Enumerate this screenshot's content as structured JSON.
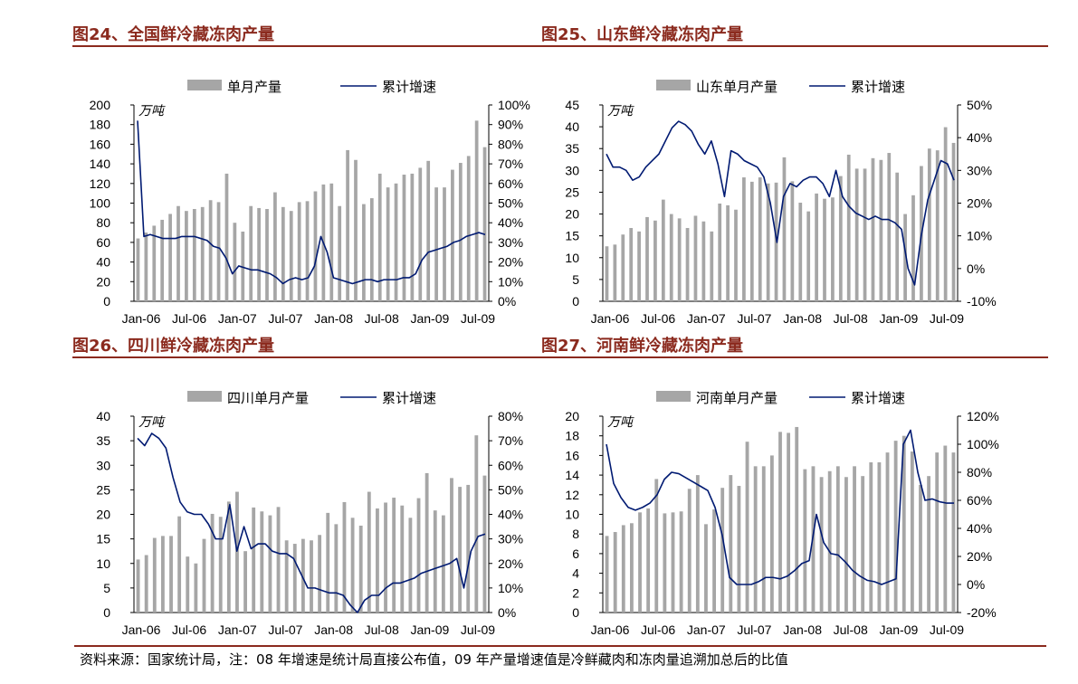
{
  "footer": {
    "source_note": "资料来源：国家统计局，注：08 年增速是统计局直接公布值，09 年产量增速值是冷鲜藏肉和冻肉量追溯加总后的比值"
  },
  "colors": {
    "bar": "#a6a6a6",
    "line": "#001a72",
    "title": "#8b2a1e"
  },
  "chart_data": [
    {
      "type": "bar",
      "title": "图24、全国鲜冷藏冻肉产量",
      "unit_label": "万吨",
      "x_tick_labels": [
        "Jan-06",
        "Jul-06",
        "Jan-07",
        "Jul-07",
        "Jan-08",
        "Jul-08",
        "Jan-09",
        "Jul-09"
      ],
      "left_axis": {
        "min": 0,
        "max": 200,
        "step": 20,
        "format": "number"
      },
      "right_axis": {
        "min": 0,
        "max": 100,
        "step": 10,
        "format": "percent"
      },
      "series": [
        {
          "name": "单月产量",
          "type": "bar",
          "axis": "left",
          "values": [
            64,
            70,
            77,
            83,
            89,
            97,
            92,
            94,
            96,
            103,
            101,
            130,
            80,
            71,
            97,
            95,
            94,
            111,
            96,
            92,
            101,
            102,
            112,
            119,
            120,
            97,
            154,
            144,
            99,
            105,
            130,
            116,
            120,
            129,
            130,
            136,
            143,
            116,
            116,
            134,
            141,
            148,
            184,
            157
          ]
        },
        {
          "name": "累计增速",
          "type": "line",
          "axis": "right",
          "values": [
            92,
            33,
            34,
            33,
            32,
            32,
            32,
            33,
            33,
            33,
            32,
            31,
            28,
            27,
            22,
            14,
            18,
            17,
            16,
            16,
            15,
            14,
            12,
            9,
            11,
            12,
            11,
            12,
            18,
            33,
            25,
            12,
            11,
            10,
            9,
            10,
            11,
            11,
            10,
            11,
            11,
            11,
            12,
            12,
            14,
            21,
            25,
            26,
            27,
            28,
            30,
            31,
            33,
            34,
            35,
            34
          ]
        }
      ]
    },
    {
      "type": "bar",
      "title": "图25、山东鲜冷藏冻肉产量",
      "unit_label": "万吨",
      "x_tick_labels": [
        "Jan-06",
        "Jul-06",
        "Jan-07",
        "Jul-07",
        "Jan-08",
        "Jul-08",
        "Jan-09",
        "Jul-09"
      ],
      "left_axis": {
        "min": 0,
        "max": 45,
        "step": 5,
        "format": "number"
      },
      "right_axis": {
        "min": -10,
        "max": 50,
        "step": 10,
        "format": "percent"
      },
      "series": [
        {
          "name": "山东单月产量",
          "type": "bar",
          "axis": "left",
          "values": [
            12.6,
            13.0,
            15.3,
            16.8,
            16.0,
            19.3,
            18.5,
            23.3,
            20.0,
            19.0,
            16.8,
            19.6,
            18.3,
            16.0,
            22.4,
            22.0,
            21.0,
            28.4,
            27.4,
            28.4,
            27.0,
            27.2,
            33.0,
            27.5,
            22.6,
            20.6,
            24.7,
            23.5,
            23.8,
            28.7,
            33.6,
            30.4,
            30.4,
            32.8,
            32.4,
            34.0,
            29.5,
            20.0,
            24.3,
            31.0,
            35.0,
            34.6,
            39.9,
            36.3
          ]
        },
        {
          "name": "累计增速",
          "type": "line",
          "axis": "right",
          "values": [
            35,
            31,
            31,
            30,
            27,
            28,
            31,
            33,
            35,
            39,
            43,
            45,
            44,
            42,
            38,
            35,
            39,
            32,
            22,
            36,
            35,
            33,
            32,
            31,
            28,
            20,
            8,
            22,
            26,
            25,
            27,
            28,
            28,
            26,
            22,
            30,
            22,
            19,
            17,
            16,
            15,
            16,
            15,
            15,
            14,
            12,
            0,
            -5,
            10,
            21,
            27,
            33,
            32,
            27
          ]
        }
      ]
    },
    {
      "type": "bar",
      "title": "图26、四川鲜冷藏冻肉产量",
      "unit_label": "万吨",
      "x_tick_labels": [
        "Jan-06",
        "Jul-06",
        "Jan-07",
        "Jul-07",
        "Jan-08",
        "Jul-08",
        "Jan-09",
        "Jul-09"
      ],
      "left_axis": {
        "min": 0,
        "max": 40,
        "step": 5,
        "format": "number"
      },
      "right_axis": {
        "min": 0,
        "max": 80,
        "step": 10,
        "format": "percent"
      },
      "series": [
        {
          "name": "四川单月产量",
          "type": "bar",
          "axis": "left",
          "values": [
            10.8,
            11.7,
            15.2,
            15.6,
            15.6,
            19.6,
            11.4,
            10.0,
            15.0,
            20.1,
            19.5,
            22.6,
            24.6,
            12.5,
            21.4,
            20.6,
            19.8,
            21.5,
            14.7,
            14.0,
            15.0,
            14.7,
            15.8,
            20.3,
            18.0,
            22.5,
            19.3,
            17.7,
            24.6,
            21.2,
            22.4,
            23.4,
            21.8,
            19.3,
            23.3,
            28.4,
            20.8,
            19.8,
            27.4,
            25.6,
            26.0,
            36.1,
            27.9
          ]
        },
        {
          "name": "累计增速",
          "type": "line",
          "axis": "right",
          "values": [
            71,
            68,
            73,
            71,
            67,
            55,
            45,
            41,
            40,
            40,
            36,
            30,
            30,
            44,
            25,
            35,
            26,
            28,
            28,
            25,
            24,
            24,
            22,
            16,
            10,
            10,
            9,
            8,
            8,
            7,
            3,
            0,
            5,
            7,
            7,
            10,
            12,
            12,
            13,
            14,
            16,
            17,
            18,
            19,
            20,
            22,
            10,
            25,
            31,
            32
          ]
        }
      ]
    },
    {
      "type": "bar",
      "title": "图27、河南鲜冷藏冻肉产量",
      "unit_label": "万吨",
      "x_tick_labels": [
        "Jan-06",
        "Jul-06",
        "Jan-07",
        "Jul-07",
        "Jan-08",
        "Jul-08",
        "Jan-09",
        "Jul-09"
      ],
      "left_axis": {
        "min": 0,
        "max": 20,
        "step": 2,
        "format": "number"
      },
      "right_axis": {
        "min": -20,
        "max": 120,
        "step": 20,
        "format": "percent"
      },
      "series": [
        {
          "name": "河南单月产量",
          "type": "bar",
          "axis": "left",
          "values": [
            7.8,
            8.2,
            8.9,
            9.1,
            10.2,
            10.6,
            13.6,
            10.1,
            10.2,
            10.3,
            12.6,
            14.0,
            9.0,
            10.5,
            12.7,
            14.0,
            12.9,
            17.4,
            14.9,
            14.9,
            16.0,
            18.4,
            18.3,
            18.9,
            14.6,
            14.9,
            13.8,
            14.4,
            14.9,
            13.8,
            14.9,
            13.9,
            15.3,
            15.3,
            16.3,
            17.5,
            18.0,
            16.4,
            13.0,
            13.9,
            16.3,
            17.0,
            16.3
          ]
        },
        {
          "name": "累计增速",
          "type": "line",
          "axis": "right",
          "values": [
            100,
            72,
            62,
            55,
            53,
            55,
            58,
            64,
            75,
            80,
            79,
            76,
            73,
            70,
            67,
            55,
            35,
            5,
            0,
            0,
            0,
            2,
            5,
            5,
            4,
            6,
            10,
            15,
            17,
            50,
            30,
            22,
            21,
            16,
            10,
            6,
            3,
            2,
            0,
            2,
            4,
            100,
            110,
            80,
            60,
            61,
            59,
            58,
            58
          ]
        }
      ]
    }
  ]
}
